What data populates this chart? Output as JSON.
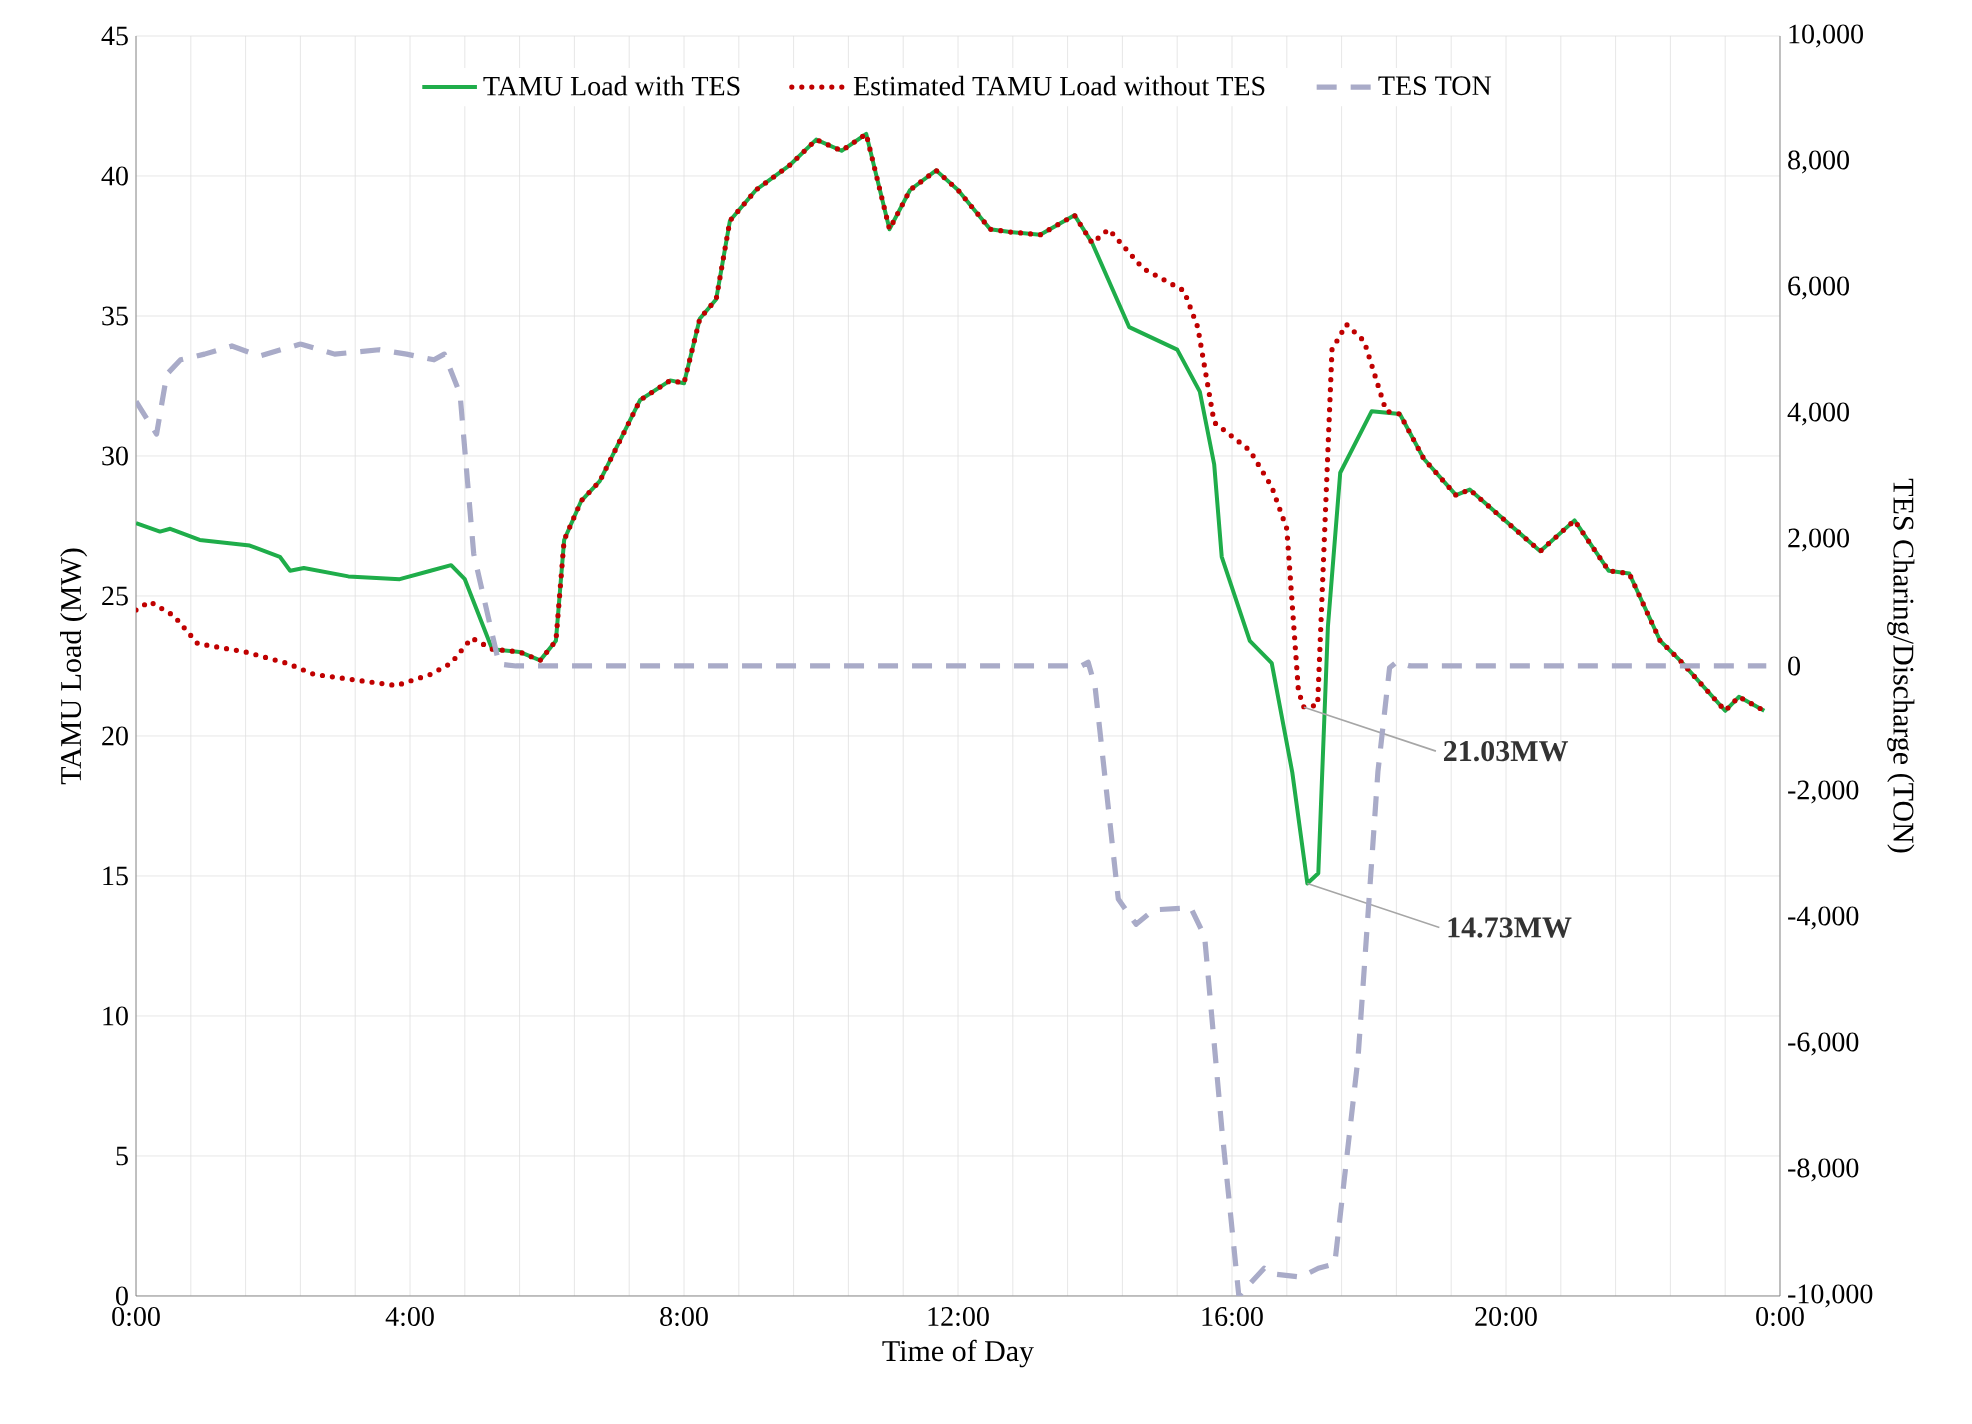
{
  "chart_data": {
    "type": "line",
    "xlabel": "Time of Day",
    "ylabel": "TAMU Load (MW)",
    "y2label": "TES Charing/Discharge (TON)",
    "xlim": [
      0,
      24
    ],
    "xticks": [
      {
        "value": 0,
        "label": "0:00"
      },
      {
        "value": 4,
        "label": "4:00"
      },
      {
        "value": 8,
        "label": "8:00"
      },
      {
        "value": 12,
        "label": "12:00"
      },
      {
        "value": 16,
        "label": "16:00"
      },
      {
        "value": 20,
        "label": "20:00"
      },
      {
        "value": 24,
        "label": "0:00"
      }
    ],
    "ylim": [
      0,
      45
    ],
    "yticks": [
      0,
      5,
      10,
      15,
      20,
      25,
      30,
      35,
      40,
      45
    ],
    "y2lim": [
      -10000,
      10000
    ],
    "y2ticks": [
      {
        "value": -10000,
        "label": "-10,000"
      },
      {
        "value": -8000,
        "label": "-8,000"
      },
      {
        "value": -6000,
        "label": "-6,000"
      },
      {
        "value": -4000,
        "label": "-4,000"
      },
      {
        "value": -2000,
        "label": "-2,000"
      },
      0,
      {
        "value": 2000,
        "label": "2,000"
      },
      {
        "value": 4000,
        "label": "4,000"
      },
      {
        "value": 6000,
        "label": "6,000"
      },
      {
        "value": 8000,
        "label": "8,000"
      },
      {
        "value": 10000,
        "label": "10,000"
      }
    ],
    "grid": true,
    "legend": "top",
    "series": [
      {
        "name": "TAMU Load with TES",
        "color": "#1fad4a",
        "line_style": "solid",
        "x": [
          0,
          0.35,
          0.5,
          0.93,
          1.66,
          2.1,
          2.25,
          2.45,
          3.1,
          3.85,
          4.3,
          4.6,
          4.8,
          5.2,
          5.6,
          5.9,
          6.13,
          6.25,
          6.5,
          6.77,
          7.36,
          7.8,
          8.0,
          8.23,
          8.47,
          8.67,
          9.05,
          9.55,
          9.93,
          10.3,
          10.66,
          11.0,
          11.3,
          11.68,
          12.0,
          12.47,
          12.76,
          13.2,
          13.7,
          13.96,
          14.5,
          15.2,
          15.53,
          15.74,
          15.85,
          16.26,
          16.58,
          16.88,
          17.1,
          17.26,
          17.4,
          17.58,
          18.04,
          18.45,
          18.8,
          19.27,
          19.47,
          20.5,
          21.0,
          21.5,
          21.8,
          22.25,
          22.54,
          23.2,
          23.4,
          23.77
        ],
        "values": [
          27.6,
          27.3,
          27.4,
          27.0,
          26.8,
          26.4,
          25.9,
          26.0,
          25.7,
          25.6,
          25.9,
          26.1,
          25.6,
          23.1,
          23.0,
          22.7,
          23.4,
          27.0,
          28.4,
          29.1,
          32.0,
          32.7,
          32.6,
          34.9,
          35.6,
          38.4,
          39.5,
          40.4,
          41.3,
          40.9,
          41.5,
          38.1,
          39.5,
          40.2,
          39.5,
          38.1,
          38.0,
          37.9,
          38.6,
          37.6,
          34.6,
          33.8,
          32.3,
          29.7,
          26.4,
          23.4,
          22.6,
          18.7,
          14.73,
          15.1,
          23.9,
          29.4,
          31.6,
          31.5,
          29.9,
          28.6,
          28.8,
          26.6,
          27.7,
          25.9,
          25.8,
          23.4,
          22.7,
          20.9,
          21.4,
          20.9
        ]
      },
      {
        "name": "Estimated TAMU Load without TES",
        "color": "#c00000",
        "line_style": "dotted",
        "x": [
          0,
          0.2,
          0.55,
          0.9,
          1.6,
          2.2,
          2.6,
          3.2,
          3.8,
          4.3,
          4.6,
          4.9,
          5.2,
          5.6,
          5.9,
          6.13,
          6.25,
          6.5,
          6.77,
          7.36,
          7.8,
          8.0,
          8.23,
          8.47,
          8.67,
          9.05,
          9.55,
          9.93,
          10.3,
          10.66,
          11.0,
          11.3,
          11.68,
          12.0,
          12.47,
          12.76,
          13.2,
          13.7,
          13.96,
          14.2,
          14.7,
          15.3,
          15.5,
          15.74,
          16.26,
          16.58,
          16.8,
          16.97,
          17.05,
          17.25,
          17.46,
          17.67,
          17.93,
          18.25,
          18.45,
          18.8,
          19.27,
          19.47,
          20.5,
          21.0,
          21.5,
          21.8,
          22.25,
          22.54,
          23.2,
          23.4,
          23.77
        ],
        "values": [
          24.5,
          24.8,
          24.3,
          23.3,
          23.0,
          22.6,
          22.2,
          22.0,
          21.8,
          22.2,
          22.6,
          23.5,
          23.1,
          23.0,
          22.7,
          23.4,
          27.0,
          28.4,
          29.1,
          32.0,
          32.7,
          32.6,
          34.9,
          35.6,
          38.4,
          39.5,
          40.4,
          41.3,
          40.9,
          41.5,
          38.1,
          39.5,
          40.2,
          39.5,
          38.1,
          38.0,
          37.9,
          38.6,
          37.6,
          38.1,
          36.7,
          35.9,
          34.6,
          31.2,
          30.2,
          28.9,
          27.4,
          21.6,
          21.03,
          21.1,
          33.8,
          34.7,
          34.1,
          31.6,
          31.5,
          29.9,
          28.6,
          28.8,
          26.6,
          27.7,
          25.9,
          25.8,
          23.4,
          22.7,
          20.9,
          21.4,
          20.9
        ]
      },
      {
        "name": "TES TON",
        "color": "#a9abc8",
        "line_style": "dashed",
        "axis": "y2",
        "x": [
          0,
          0.3,
          0.45,
          0.65,
          1.0,
          1.4,
          1.8,
          2.4,
          2.9,
          3.55,
          3.95,
          4.35,
          4.5,
          4.73,
          4.93,
          5.3,
          5.55,
          13.8,
          13.9,
          14.0,
          14.34,
          14.6,
          14.86,
          15.4,
          15.6,
          15.85,
          16.1,
          16.47,
          16.6,
          17.0,
          17.26,
          17.5,
          17.84,
          18.13,
          18.3,
          18.4,
          18.6,
          23.8
        ],
        "values": [
          4200,
          3680,
          4630,
          4860,
          4950,
          5080,
          4920,
          5110,
          4950,
          5020,
          4950,
          4860,
          4950,
          4320,
          1780,
          30,
          0,
          0,
          60,
          -320,
          -3700,
          -4100,
          -3870,
          -3840,
          -4290,
          -7330,
          -10000,
          -9560,
          -9650,
          -9700,
          -9560,
          -9490,
          -6220,
          -1680,
          -30,
          60,
          0,
          0
        ]
      }
    ],
    "annotations": [
      {
        "text": "21.03MW",
        "x": 17.05,
        "y": 21.03
      },
      {
        "text": "14.73MW",
        "x": 17.1,
        "y": 14.73
      }
    ]
  }
}
